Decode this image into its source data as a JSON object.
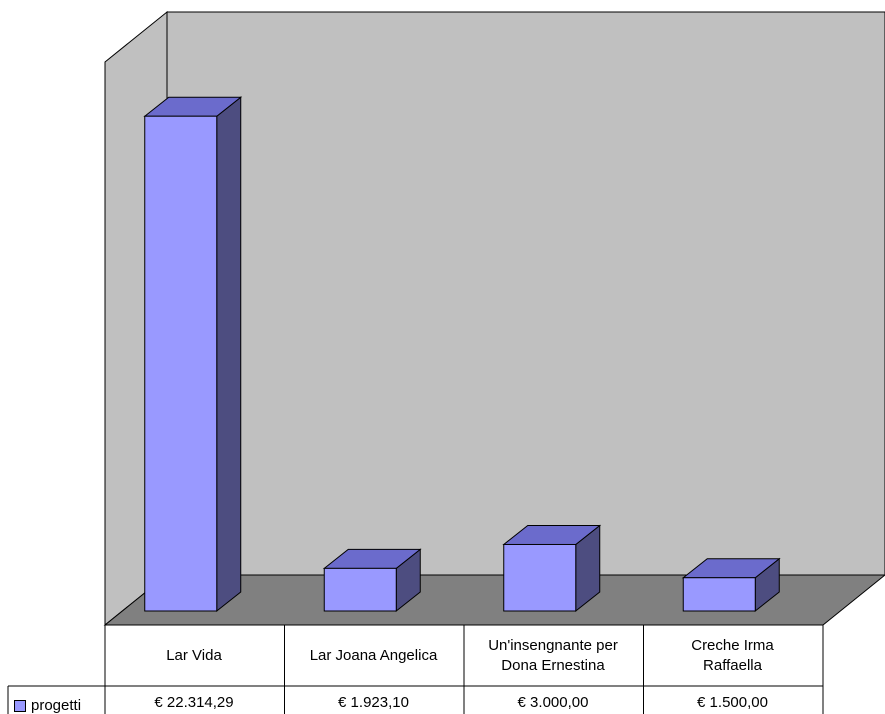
{
  "chart_data": {
    "type": "bar",
    "categories": [
      "Lar Vida",
      "Lar Joana Angelica",
      "Un'insengnante per Dona Ernestina",
      "Creche Irma Raffaella"
    ],
    "series": [
      {
        "name": "progetti",
        "values": [
          22314.29,
          1923.1,
          3000.0,
          1500.0
        ]
      }
    ],
    "value_labels": [
      "€ 22.314,29",
      "€ 1.923,10",
      "€ 3.000,00",
      "€ 1.500,00"
    ],
    "ylim": [
      0,
      23000
    ],
    "three_d": true,
    "data_table": true,
    "colors": {
      "bar_front": "#9999ff",
      "bar_top": "#6b6bcc",
      "bar_side": "#4d4d80",
      "back_wall": "#c0c0c0",
      "side_wall": "#c0c0c0",
      "floor": "#808080"
    }
  },
  "category_lines": [
    [
      "Lar Vida"
    ],
    [
      "Lar Joana Angelica"
    ],
    [
      "Un'insengnante per",
      "Dona Ernestina"
    ],
    [
      "Creche Irma",
      "Raffaella"
    ]
  ]
}
